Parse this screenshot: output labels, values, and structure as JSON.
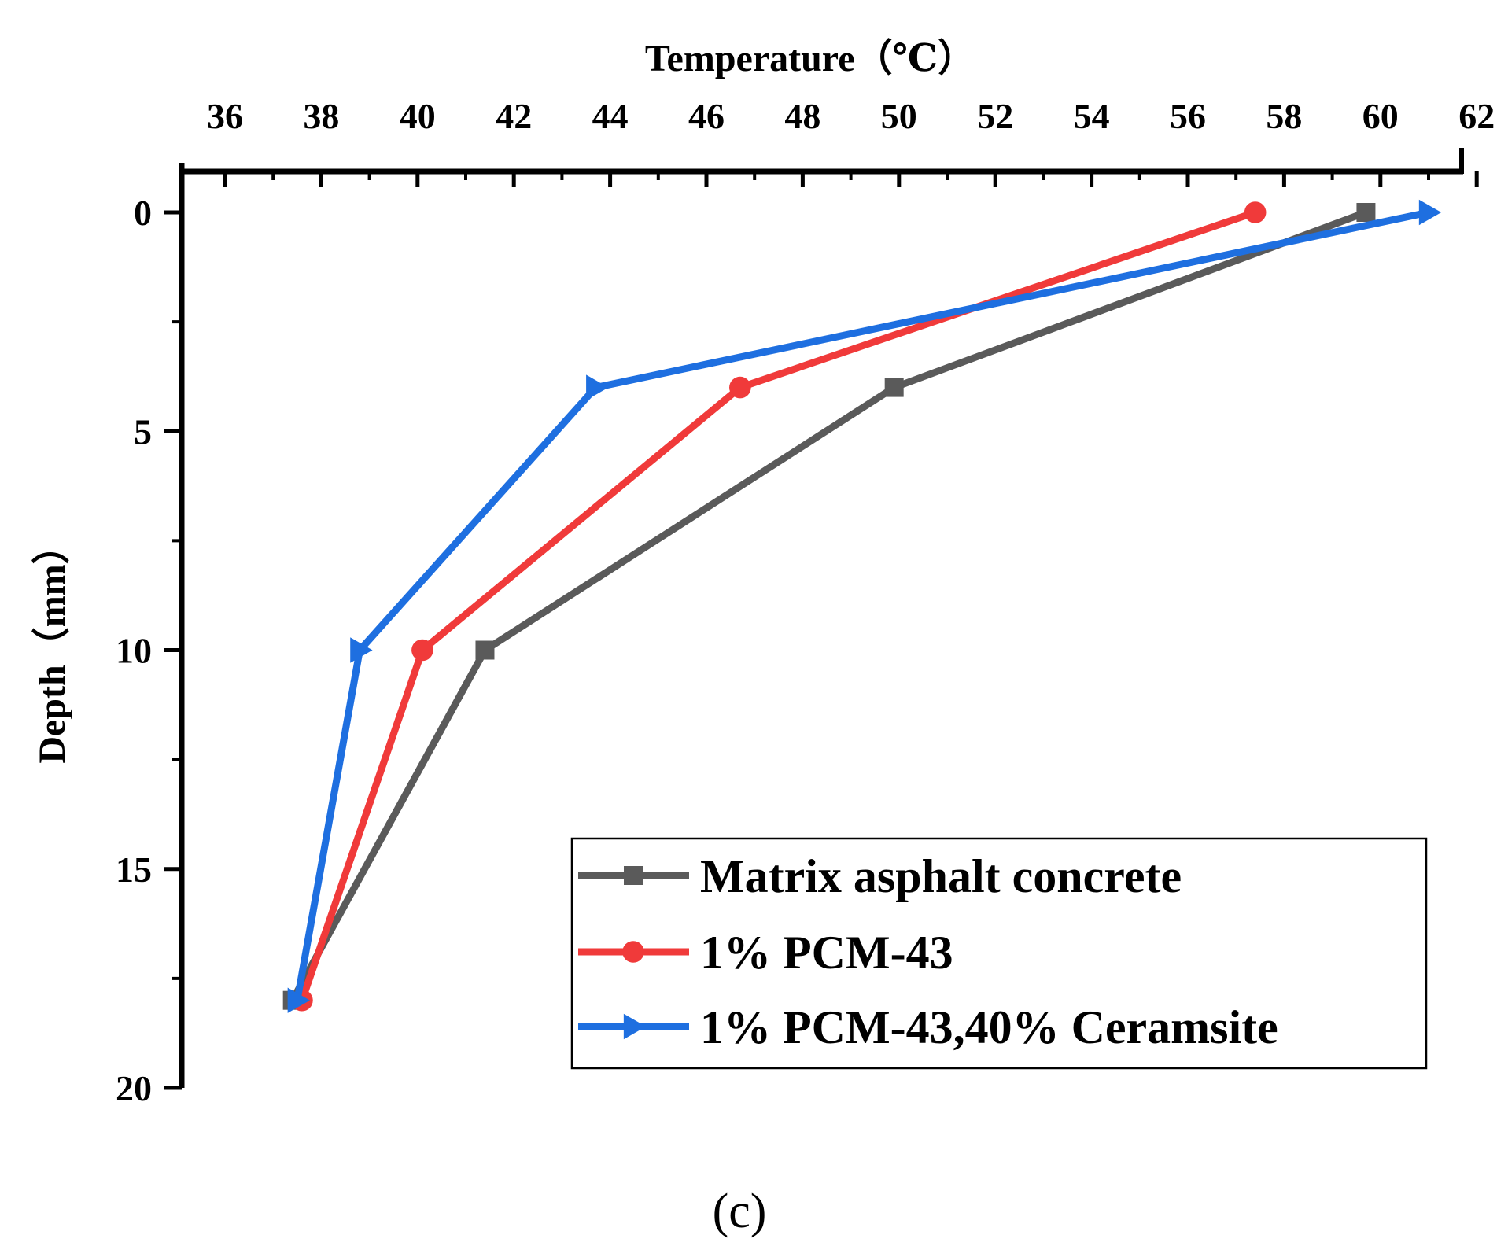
{
  "chart_data": {
    "type": "line",
    "panel_label": "(c)",
    "title": "",
    "xlabel": "Temperature（℃）",
    "ylabel": "Depth（mm）",
    "x_axis_position": "top",
    "y_axis_inverted": true,
    "xlim": [
      35,
      62
    ],
    "ylim": [
      0,
      20
    ],
    "x_ticks": [
      36,
      38,
      40,
      42,
      44,
      46,
      48,
      50,
      52,
      54,
      56,
      58,
      60,
      62
    ],
    "y_ticks": [
      0,
      5,
      10,
      15,
      20
    ],
    "grid": false,
    "legend_position": "bottom-right",
    "series": [
      {
        "name": "Matrix asphalt concrete",
        "color": "#5a5a5a",
        "marker": "square",
        "points": [
          {
            "temperature": 59.7,
            "depth": 0
          },
          {
            "temperature": 49.9,
            "depth": 4
          },
          {
            "temperature": 41.4,
            "depth": 10
          },
          {
            "temperature": 37.4,
            "depth": 18
          }
        ]
      },
      {
        "name": "1% PCM-43",
        "color": "#f03a3a",
        "marker": "circle",
        "points": [
          {
            "temperature": 57.4,
            "depth": 0
          },
          {
            "temperature": 46.7,
            "depth": 4
          },
          {
            "temperature": 40.1,
            "depth": 10
          },
          {
            "temperature": 37.6,
            "depth": 18
          }
        ]
      },
      {
        "name": "1% PCM-43,40% Ceramsite",
        "color": "#1e6fe0",
        "marker": "triangle-right",
        "points": [
          {
            "temperature": 61.0,
            "depth": 0
          },
          {
            "temperature": 43.7,
            "depth": 4
          },
          {
            "temperature": 38.8,
            "depth": 10
          },
          {
            "temperature": 37.5,
            "depth": 18
          }
        ]
      }
    ]
  }
}
